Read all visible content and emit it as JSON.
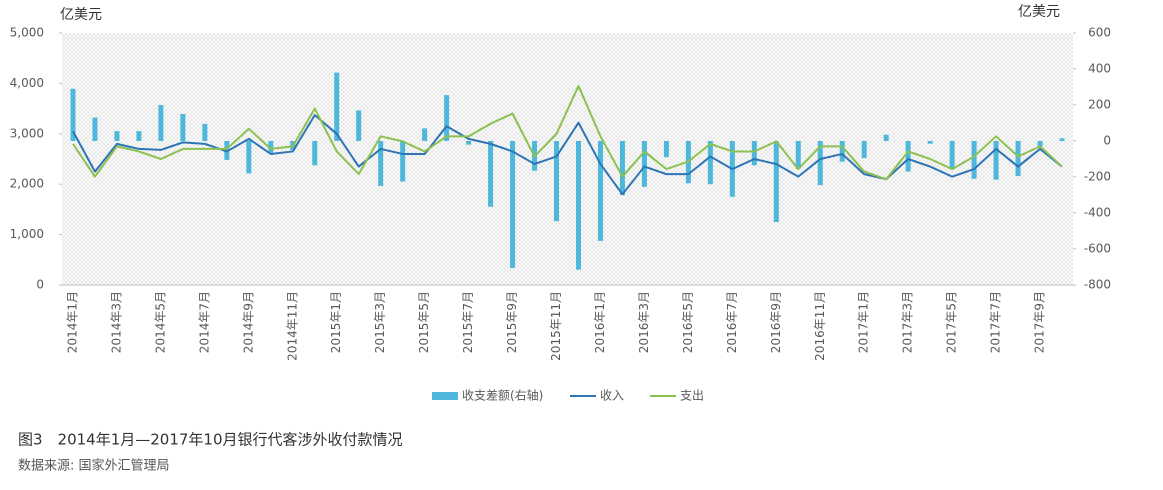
{
  "chart_data": {
    "type": "combo",
    "title": "图3　2014年1月—2017年10月银行代客涉外收付款情况",
    "source": "数据来源: 国家外汇管理局",
    "y_label": "亿美元",
    "y2_label": "亿美元",
    "categories": [
      "2014年1月",
      null,
      "2014年3月",
      null,
      "2014年5月",
      null,
      "2014年7月",
      null,
      "2014年9月",
      null,
      "2014年11月",
      null,
      "2015年1月",
      null,
      "2015年3月",
      null,
      "2015年5月",
      null,
      "2015年7月",
      null,
      "2015年9月",
      null,
      "2015年11月",
      null,
      "2016年1月",
      null,
      "2016年3月",
      null,
      "2016年5月",
      null,
      "2016年7月",
      null,
      "2016年9月",
      null,
      "2016年11月",
      null,
      "2017年1月",
      null,
      "2017年3月",
      null,
      "2017年5月",
      null,
      "2017年7月",
      null,
      "2017年9月",
      null
    ],
    "series": [
      {
        "name": "收支差额(右轴)",
        "type": "bar",
        "axis": "y2",
        "color": "#4db8dc",
        "values": [
          290,
          130,
          55,
          55,
          200,
          150,
          95,
          -105,
          -180,
          -65,
          -50,
          -135,
          380,
          170,
          -250,
          -225,
          70,
          255,
          -20,
          -365,
          -705,
          -165,
          -445,
          -715,
          -555,
          -300,
          -255,
          -90,
          -235,
          -240,
          -310,
          -135,
          -450,
          -155,
          -245,
          -115,
          -95,
          35,
          -170,
          -15,
          -150,
          -210,
          -215,
          -195,
          -30,
          15
        ]
      },
      {
        "name": "收入",
        "type": "line",
        "color": "#2e75b6",
        "values": [
          3050,
          2250,
          2800,
          2700,
          2680,
          2830,
          2800,
          2650,
          2900,
          2600,
          2650,
          3370,
          3000,
          2350,
          2700,
          2600,
          2600,
          3150,
          2900,
          2800,
          2650,
          2400,
          2550,
          3220,
          2400,
          1800,
          2350,
          2200,
          2200,
          2550,
          2300,
          2500,
          2400,
          2150,
          2500,
          2600,
          2200,
          2100,
          2500,
          2350,
          2150,
          2300,
          2700,
          2350,
          2700,
          2350
        ]
      },
      {
        "name": "支出",
        "type": "line",
        "color": "#8cc152",
        "values": [
          2800,
          2150,
          2750,
          2650,
          2500,
          2700,
          2700,
          2700,
          3100,
          2700,
          2750,
          3500,
          2650,
          2200,
          2950,
          2850,
          2650,
          2950,
          2950,
          3200,
          3400,
          2550,
          3000,
          3950,
          2950,
          2150,
          2650,
          2300,
          2450,
          2800,
          2650,
          2650,
          2850,
          2300,
          2750,
          2750,
          2250,
          2100,
          2650,
          2500,
          2300,
          2550,
          2950,
          2550,
          2750,
          2350
        ]
      }
    ],
    "ylim": [
      0,
      5000
    ],
    "yticks": [
      0,
      {
        "value": 1000,
        "label": "1,000"
      },
      {
        "value": 2000,
        "label": "2,000"
      },
      {
        "value": 3000,
        "label": "3,000"
      },
      {
        "value": 4000,
        "label": "4,000"
      },
      {
        "value": 5000,
        "label": "5,000"
      }
    ],
    "y2lim": [
      -800,
      600
    ],
    "y2ticks": [
      -800,
      -600,
      -400,
      -200,
      0,
      200,
      400,
      600
    ]
  }
}
